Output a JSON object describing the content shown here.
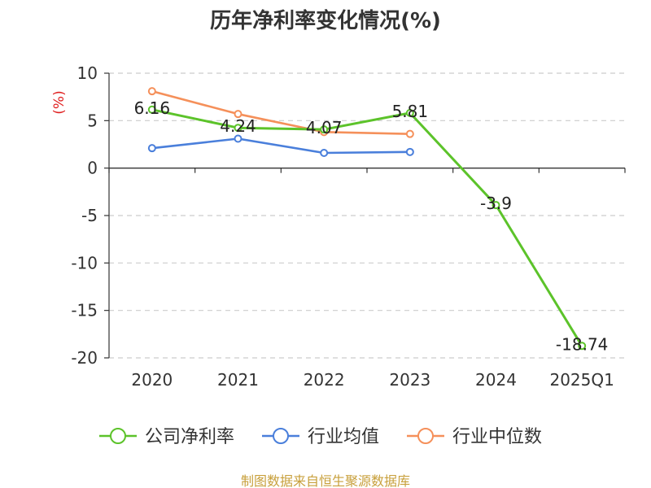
{
  "chart_data": {
    "type": "line",
    "title": "历年净利率变化情况(%)",
    "ylabel": "(%)",
    "categories": [
      "2020",
      "2021",
      "2022",
      "2023",
      "2024",
      "2025Q1"
    ],
    "ylim": [
      -20,
      10
    ],
    "yticks": [
      10,
      5,
      0,
      -5,
      -10,
      -15,
      -20
    ],
    "grid": true,
    "legend_position": "bottom",
    "series": [
      {
        "name": "公司净利率",
        "color": "#5cc32a",
        "values": [
          6.16,
          4.24,
          4.07,
          5.81,
          -3.9,
          -18.74
        ],
        "labels": [
          "6.16",
          "4.24",
          "4.07",
          "5.81",
          "-3.9",
          "-18.74"
        ]
      },
      {
        "name": "行业均值",
        "color": "#4a7fdb",
        "values": [
          2.1,
          3.1,
          1.6,
          1.7,
          null,
          null
        ]
      },
      {
        "name": "行业中位数",
        "color": "#f5905a",
        "values": [
          8.1,
          5.7,
          3.8,
          3.6,
          null,
          null
        ]
      }
    ]
  },
  "footer": {
    "source": "制图数据来自恒生聚源数据库"
  }
}
